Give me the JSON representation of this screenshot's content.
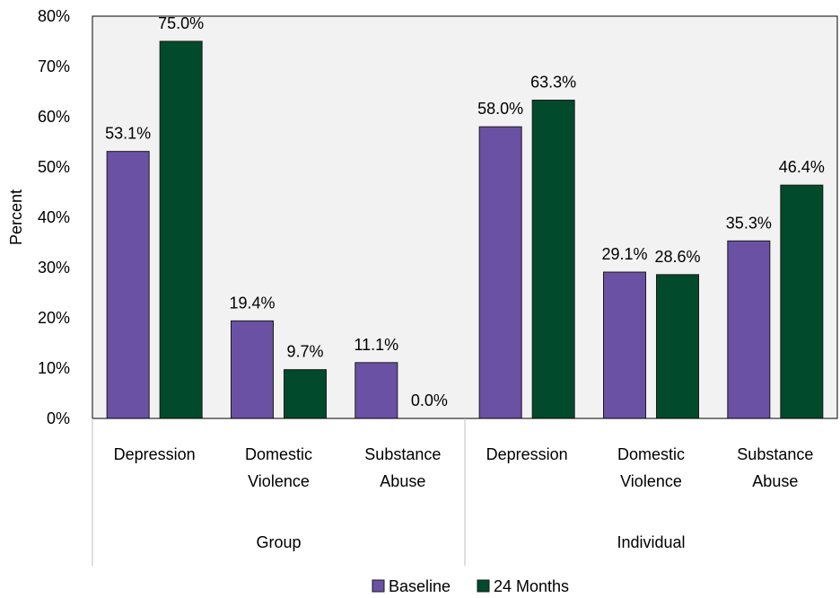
{
  "chart_data": {
    "type": "bar",
    "ylabel": "Percent",
    "ylim": [
      0,
      80
    ],
    "yticks": [
      "0%",
      "10%",
      "20%",
      "30%",
      "40%",
      "50%",
      "60%",
      "70%",
      "80%"
    ],
    "groups": [
      {
        "label": "Group",
        "categories": [
          [
            "Depression"
          ],
          [
            "Domestic",
            "Violence"
          ],
          [
            "Substance",
            "Abuse"
          ]
        ]
      },
      {
        "label": "Individual",
        "categories": [
          [
            "Depression"
          ],
          [
            "Domestic",
            "Violence"
          ],
          [
            "Substance",
            "Abuse"
          ]
        ]
      }
    ],
    "series": [
      {
        "name": "Baseline",
        "color": "#6a51a3",
        "values": [
          53.1,
          19.4,
          11.1,
          58.0,
          29.1,
          35.3
        ],
        "labels": [
          "53.1%",
          "19.4%",
          "11.1%",
          "58.0%",
          "29.1%",
          "35.3%"
        ]
      },
      {
        "name": "24 Months",
        "color": "#024a2c",
        "values": [
          75.0,
          9.7,
          0.0,
          63.3,
          28.6,
          46.4
        ],
        "labels": [
          "75.0%",
          "9.7%",
          "0.0%",
          "63.3%",
          "28.6%",
          "46.4%"
        ]
      }
    ],
    "legend_position": "bottom"
  }
}
